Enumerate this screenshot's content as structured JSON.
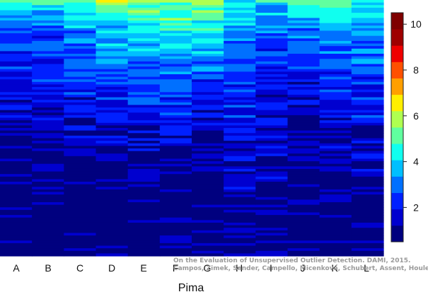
{
  "chart_data": {
    "type": "heatmap",
    "title": "",
    "xlabel": "Pima",
    "ylabel": "",
    "categories": [
      "A",
      "B",
      "C",
      "D",
      "E",
      "F",
      "G",
      "H",
      "I",
      "J",
      "K",
      "L"
    ],
    "colorbar": {
      "range": [
        0.5,
        10.5
      ],
      "ticks": [
        2,
        4,
        6,
        8,
        10
      ],
      "colors": [
        "#00007F",
        "#0000CF",
        "#0020FF",
        "#0070FF",
        "#00BFFF",
        "#10FFEF",
        "#60FF9F",
        "#AFFF50",
        "#FFEF00",
        "#FF9F00",
        "#FF5000",
        "#EF0000",
        "#9F0000",
        "#7F0000"
      ]
    },
    "rows": 100,
    "column_profiles": [
      {
        "name": "A",
        "levels": [
          [
            0,
            5.0
          ],
          [
            4,
            3.6
          ],
          [
            10,
            2.6
          ],
          [
            40,
            1.6
          ],
          [
            78,
            0.6
          ],
          [
            100,
            0.6
          ]
        ]
      },
      {
        "name": "B",
        "levels": [
          [
            0,
            5.0
          ],
          [
            4,
            3.7
          ],
          [
            12,
            2.7
          ],
          [
            42,
            1.6
          ],
          [
            78,
            0.6
          ],
          [
            100,
            0.6
          ]
        ]
      },
      {
        "name": "C",
        "levels": [
          [
            0,
            5.2
          ],
          [
            5,
            4.0
          ],
          [
            18,
            2.8
          ],
          [
            44,
            1.7
          ],
          [
            74,
            0.6
          ],
          [
            100,
            0.6
          ]
        ]
      },
      {
        "name": "D",
        "levels": [
          [
            0,
            5.5
          ],
          [
            6,
            4.4
          ],
          [
            22,
            2.9
          ],
          [
            46,
            1.7
          ],
          [
            78,
            0.6
          ],
          [
            100,
            0.6
          ]
        ]
      },
      {
        "name": "E",
        "levels": [
          [
            0,
            5.7
          ],
          [
            8,
            4.6
          ],
          [
            24,
            3.0
          ],
          [
            48,
            1.8
          ],
          [
            78,
            0.6
          ],
          [
            100,
            0.6
          ]
        ]
      },
      {
        "name": "F",
        "levels": [
          [
            0,
            5.6
          ],
          [
            10,
            4.4
          ],
          [
            26,
            3.1
          ],
          [
            52,
            1.6
          ],
          [
            78,
            0.6
          ],
          [
            100,
            0.6
          ]
        ]
      },
      {
        "name": "G",
        "levels": [
          [
            0,
            5.4
          ],
          [
            10,
            4.2
          ],
          [
            28,
            2.7
          ],
          [
            50,
            1.4
          ],
          [
            70,
            0.6
          ],
          [
            100,
            0.6
          ]
        ]
      },
      {
        "name": "H",
        "levels": [
          [
            0,
            4.8
          ],
          [
            12,
            3.5
          ],
          [
            30,
            2.5
          ],
          [
            55,
            1.8
          ],
          [
            70,
            1.5
          ],
          [
            100,
            1.0
          ]
        ]
      },
      {
        "name": "I",
        "levels": [
          [
            0,
            4.2
          ],
          [
            8,
            3.0
          ],
          [
            26,
            2.2
          ],
          [
            50,
            1.6
          ],
          [
            75,
            1.2
          ],
          [
            100,
            0.8
          ]
        ]
      },
      {
        "name": "J",
        "levels": [
          [
            0,
            4.4
          ],
          [
            10,
            3.2
          ],
          [
            28,
            2.0
          ],
          [
            46,
            1.2
          ],
          [
            70,
            0.9
          ],
          [
            100,
            0.6
          ]
        ]
      },
      {
        "name": "K",
        "levels": [
          [
            0,
            5.0
          ],
          [
            8,
            3.8
          ],
          [
            24,
            2.6
          ],
          [
            50,
            1.6
          ],
          [
            76,
            0.8
          ],
          [
            100,
            0.6
          ]
        ]
      },
      {
        "name": "L",
        "levels": [
          [
            0,
            4.6
          ],
          [
            10,
            3.4
          ],
          [
            30,
            2.4
          ],
          [
            56,
            1.6
          ],
          [
            80,
            0.9
          ],
          [
            100,
            0.6
          ]
        ]
      }
    ]
  },
  "credit": {
    "line1": "On the Evaluation of Unsupervised Outlier Detection. DAMI, 2015.",
    "line2": "Campos, Zimek, Sander, Campello, Micenková, Schubert, Assent, Houle"
  }
}
